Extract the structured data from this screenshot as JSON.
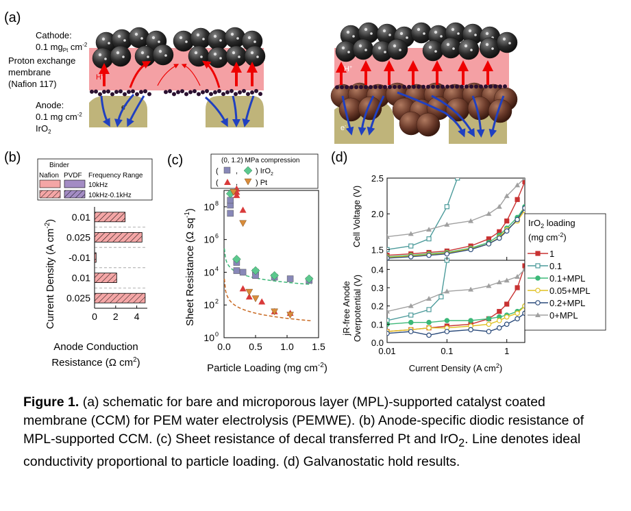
{
  "panel_a": {
    "label": "(a)",
    "cathode": [
      "Cathode:",
      "0.1 mg",
      "Pt",
      " cm",
      "-2"
    ],
    "membrane": [
      "Proton exchange",
      "membrane",
      "(Nafion 117)"
    ],
    "anode": [
      "Anode:",
      "0.1 mg cm",
      "-2",
      "IrO",
      "2"
    ],
    "proton": "H",
    "electron": "e"
  },
  "panel_b": {
    "label": "(b)",
    "legend": {
      "title": "Binder",
      "nafion": "Nafion",
      "pvdf": "PVDF",
      "freq_title": "Frequency Range",
      "f1": "10kHz",
      "f2": "10kHz-0.1kHz"
    },
    "colors": {
      "nafion": "#f4a6a6",
      "pvdf": "#a38cc4"
    },
    "chart_data": {
      "type": "bar",
      "orientation": "horizontal",
      "categories": [
        "0.01",
        "0.025",
        "-0.01",
        "0.01",
        "0.025"
      ],
      "values": [
        2.9,
        4.5,
        0.15,
        2.1,
        4.8
      ],
      "xlim": [
        0,
        5
      ],
      "xticks": [
        "0",
        "2",
        "4"
      ],
      "ylabel": "Current Density (A cm-2)",
      "xlabel": [
        "Anode Conduction",
        "Resistance (Ω cm",
        "2",
        ")"
      ]
    }
  },
  "panel_c": {
    "label": "(c)",
    "legend": {
      "title": "(0, 1.2) MPa compression",
      "iro2": ") IrO",
      "pt": ") Pt",
      "open": "(",
      "comma": ","
    },
    "chart_data": {
      "type": "scatter",
      "xlabel": [
        "Particle Loading (mg cm",
        "-2",
        ")"
      ],
      "ylabel": [
        "Sheet Resistance (Ω sq",
        "-1",
        ")"
      ],
      "xlim": [
        0,
        1.5
      ],
      "ylog": true,
      "ylim_exp": [
        0,
        9
      ],
      "xticks": [
        "0.0",
        "0.5",
        "1.0",
        "1.5"
      ],
      "yticks": [
        "10",
        "10",
        "10",
        "10",
        "10"
      ],
      "ytick_exps": [
        "0",
        "2",
        "4",
        "6",
        "8"
      ],
      "series": [
        {
          "marker": "square",
          "color": "#8888b8",
          "points": [
            [
              0.1,
              7.6
            ],
            [
              0.1,
              8.1
            ],
            [
              0.1,
              8.4
            ],
            [
              0.2,
              4.6
            ],
            [
              0.2,
              4.1
            ],
            [
              0.3,
              4.0
            ],
            [
              0.5,
              4.0
            ],
            [
              0.5,
              3.8
            ],
            [
              0.8,
              3.7
            ],
            [
              1.05,
              3.6
            ],
            [
              1.35,
              3.5
            ]
          ]
        },
        {
          "marker": "diamond",
          "color": "#5cc88e",
          "points": [
            [
              0.1,
              8.8
            ],
            [
              0.2,
              4.8
            ],
            [
              0.5,
              4.1
            ],
            [
              0.8,
              3.8
            ],
            [
              1.35,
              3.6
            ]
          ]
        },
        {
          "marker": "triangle",
          "color": "#d93a3a",
          "points": [
            [
              0.2,
              9.1
            ],
            [
              0.2,
              8.9
            ],
            [
              0.2,
              8.7
            ],
            [
              0.3,
              7.8
            ],
            [
              0.3,
              3.0
            ],
            [
              0.4,
              2.5
            ],
            [
              0.6,
              2.2
            ],
            [
              0.8,
              1.6
            ],
            [
              1.05,
              1.5
            ]
          ]
        },
        {
          "marker": "invtriangle",
          "color": "#d98c3a",
          "points": [
            [
              0.15,
              8.9
            ],
            [
              0.3,
              7.0
            ],
            [
              0.4,
              2.8
            ],
            [
              0.5,
              2.4
            ],
            [
              0.8,
              1.6
            ],
            [
              1.05,
              1.4
            ]
          ]
        }
      ]
    }
  },
  "panel_d": {
    "label": "(d)",
    "top_ylabel": "Cell Voltage (V)",
    "bottom_ylabel": [
      "jR-free Anode",
      "Overpotential (V)"
    ],
    "xlabel": [
      "Current Density (A cm",
      "2",
      ")"
    ],
    "top_yticks": [
      "1.5",
      "2.0",
      "2.5"
    ],
    "bottom_yticks": [
      "0.0",
      "0.1",
      "0.2",
      "0.3",
      "0.4"
    ],
    "xticks": [
      "0.01",
      "0.1",
      "1"
    ],
    "legend_title": [
      "IrO",
      "2",
      " loading",
      "(mg cm",
      "-2",
      ")"
    ],
    "chart_data": {
      "type": "line",
      "xlog": true,
      "xlim": [
        0.01,
        2
      ],
      "top_ylim": [
        1.35,
        2.5
      ],
      "bottom_ylim": [
        0,
        0.45
      ],
      "series": [
        {
          "name": "1",
          "color": "#c83232",
          "marker": "square-filled",
          "top": [
            [
              0.01,
              1.42
            ],
            [
              0.025,
              1.44
            ],
            [
              0.05,
              1.46
            ],
            [
              0.1,
              1.48
            ],
            [
              0.25,
              1.55
            ],
            [
              0.5,
              1.65
            ],
            [
              0.75,
              1.75
            ],
            [
              1,
              1.9
            ],
            [
              1.5,
              2.2
            ],
            [
              2,
              2.45
            ]
          ],
          "bottom": [
            [
              0.01,
              0.06
            ],
            [
              0.025,
              0.07
            ],
            [
              0.05,
              0.08
            ],
            [
              0.1,
              0.09
            ],
            [
              0.25,
              0.1
            ],
            [
              0.5,
              0.13
            ],
            [
              0.75,
              0.17
            ],
            [
              1,
              0.21
            ],
            [
              1.5,
              0.3
            ],
            [
              2,
              0.42
            ]
          ]
        },
        {
          "name": "0.1",
          "color": "#4a9a9a",
          "marker": "square-open",
          "top": [
            [
              0.01,
              1.5
            ],
            [
              0.025,
              1.55
            ],
            [
              0.05,
              1.65
            ],
            [
              0.1,
              2.1
            ],
            [
              0.15,
              2.5
            ]
          ],
          "bottom": [
            [
              0.01,
              0.12
            ],
            [
              0.025,
              0.15
            ],
            [
              0.05,
              0.18
            ],
            [
              0.08,
              0.25
            ],
            [
              0.1,
              0.45
            ]
          ]
        },
        {
          "name": "0.1+MPL",
          "color": "#3cb878",
          "marker": "circle-filled",
          "top": [
            [
              0.01,
              1.4
            ],
            [
              0.025,
              1.42
            ],
            [
              0.05,
              1.44
            ],
            [
              0.1,
              1.46
            ],
            [
              0.25,
              1.52
            ],
            [
              0.5,
              1.6
            ],
            [
              0.75,
              1.7
            ],
            [
              1,
              1.8
            ],
            [
              1.5,
              1.95
            ],
            [
              2,
              2.1
            ]
          ],
          "bottom": [
            [
              0.01,
              0.1
            ],
            [
              0.025,
              0.11
            ],
            [
              0.05,
              0.11
            ],
            [
              0.1,
              0.12
            ],
            [
              0.25,
              0.12
            ],
            [
              0.5,
              0.13
            ],
            [
              0.75,
              0.14
            ],
            [
              1,
              0.15
            ],
            [
              1.5,
              0.17
            ],
            [
              2,
              0.2
            ]
          ]
        },
        {
          "name": "0.05+MPL",
          "color": "#e0c020",
          "marker": "circle-open",
          "top": [
            [
              0.01,
              1.39
            ],
            [
              0.025,
              1.41
            ],
            [
              0.05,
              1.43
            ],
            [
              0.1,
              1.45
            ],
            [
              0.25,
              1.51
            ],
            [
              0.5,
              1.58
            ],
            [
              0.75,
              1.67
            ],
            [
              1,
              1.78
            ],
            [
              1.5,
              1.9
            ],
            [
              2,
              2.05
            ]
          ],
          "bottom": [
            [
              0.01,
              0.06
            ],
            [
              0.025,
              0.07
            ],
            [
              0.05,
              0.08
            ],
            [
              0.1,
              0.08
            ],
            [
              0.25,
              0.09
            ],
            [
              0.5,
              0.1
            ],
            [
              0.75,
              0.12
            ],
            [
              1,
              0.14
            ],
            [
              1.5,
              0.16
            ],
            [
              2,
              0.2
            ]
          ]
        },
        {
          "name": "0.2+MPL",
          "color": "#2a4a7a",
          "marker": "circle-open",
          "top": [
            [
              0.01,
              1.38
            ],
            [
              0.025,
              1.4
            ],
            [
              0.05,
              1.42
            ],
            [
              0.1,
              1.44
            ],
            [
              0.25,
              1.5
            ],
            [
              0.5,
              1.58
            ],
            [
              0.75,
              1.66
            ],
            [
              1,
              1.76
            ],
            [
              1.5,
              1.92
            ],
            [
              2,
              2.08
            ]
          ],
          "bottom": [
            [
              0.01,
              0.05
            ],
            [
              0.025,
              0.06
            ],
            [
              0.05,
              0.04
            ],
            [
              0.1,
              0.06
            ],
            [
              0.25,
              0.07
            ],
            [
              0.5,
              0.06
            ],
            [
              0.75,
              0.08
            ],
            [
              1,
              0.1
            ],
            [
              1.5,
              0.13
            ],
            [
              2,
              0.16
            ]
          ]
        },
        {
          "name": "0+MPL",
          "color": "#a0a0a0",
          "marker": "triangle-filled",
          "top": [
            [
              0.01,
              1.68
            ],
            [
              0.025,
              1.72
            ],
            [
              0.05,
              1.78
            ],
            [
              0.1,
              1.85
            ],
            [
              0.25,
              1.9
            ],
            [
              0.5,
              2.0
            ],
            [
              0.75,
              2.1
            ],
            [
              1,
              2.25
            ],
            [
              1.5,
              2.4
            ],
            [
              2,
              2.5
            ]
          ],
          "bottom": [
            [
              0.01,
              0.17
            ],
            [
              0.025,
              0.2
            ],
            [
              0.05,
              0.24
            ],
            [
              0.1,
              0.28
            ],
            [
              0.25,
              0.29
            ],
            [
              0.5,
              0.31
            ],
            [
              0.75,
              0.33
            ],
            [
              1,
              0.34
            ],
            [
              1.5,
              0.36
            ],
            [
              2,
              0.4
            ]
          ]
        }
      ]
    }
  },
  "caption": {
    "bold": "Figure 1.",
    "text": " (a) schematic for bare and microporous layer (MPL)-supported catalyst coated membrane (CCM) for PEM water electrolysis (PEMWE). (b) Anode-specific diodic resistance of MPL-supported CCM. (c) Sheet resistance of decal transferred Pt and IrO",
    "sub": "2",
    "text2": ". Line denotes ideal conductivity proportional to particle loading. (d) Galvanostatic hold results."
  }
}
